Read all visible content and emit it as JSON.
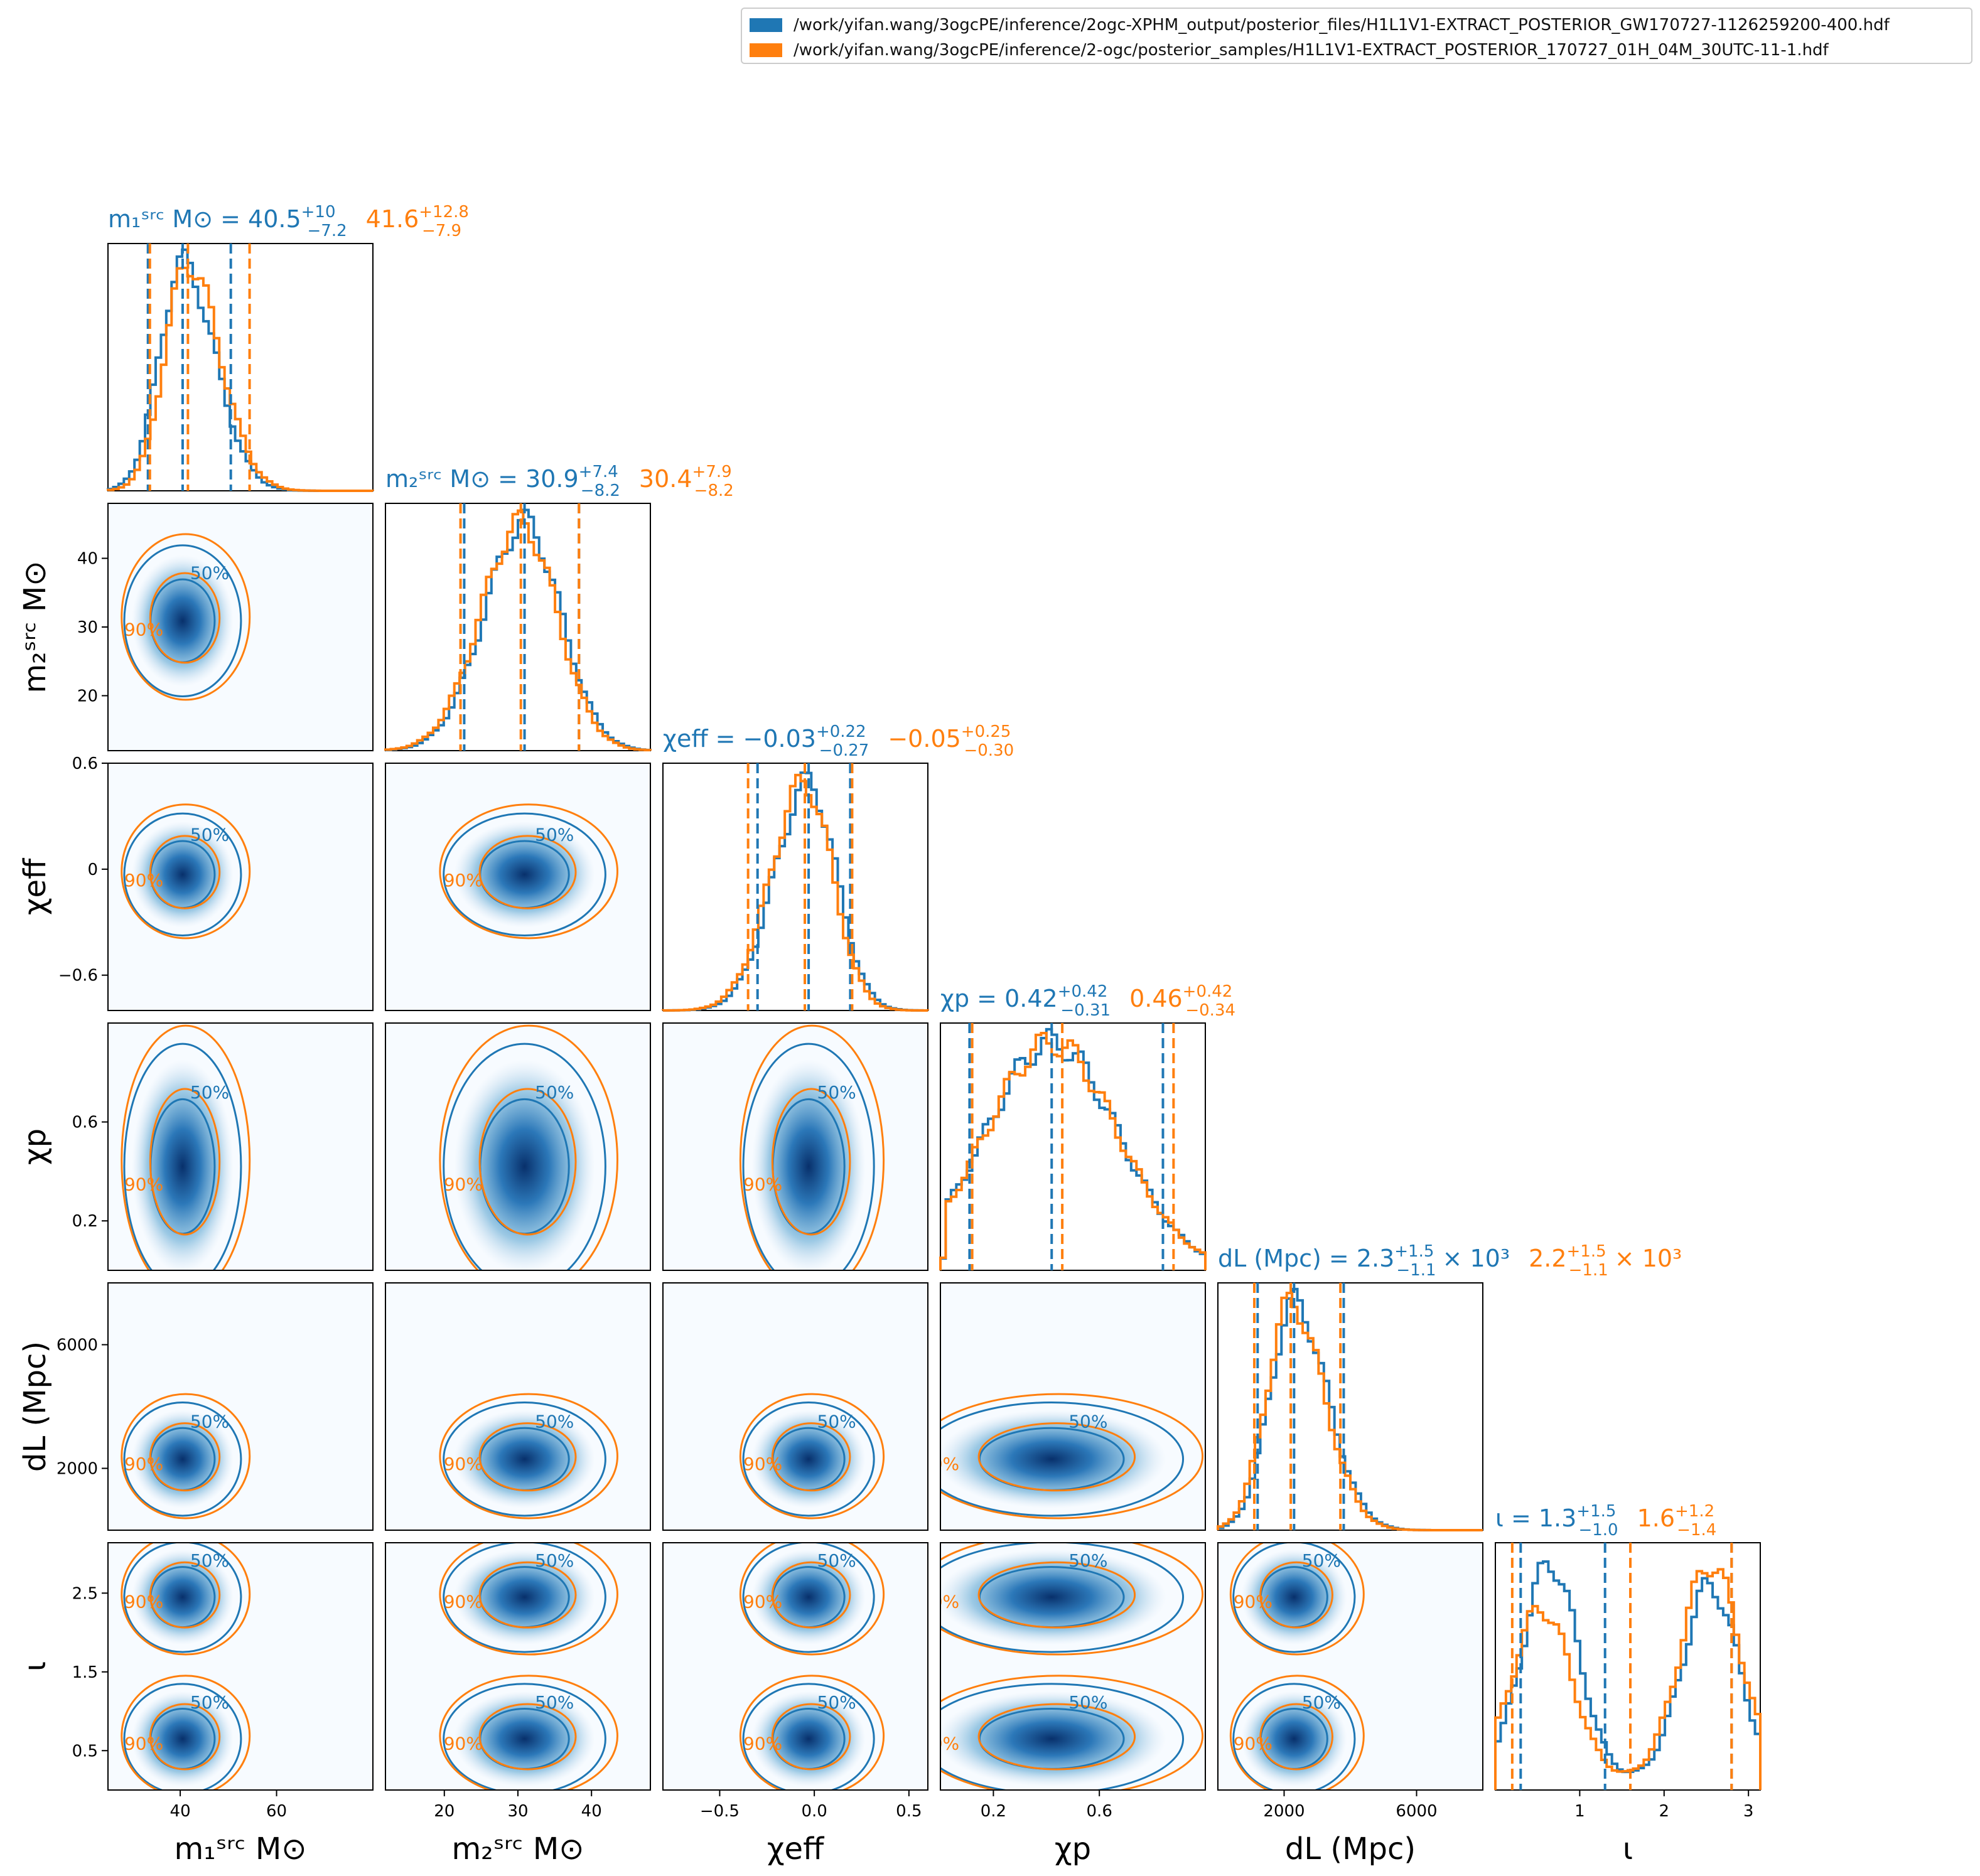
{
  "colors": {
    "blue": "#1f77b4",
    "orange": "#ff7f0e",
    "cmap": "Blues"
  },
  "legend": {
    "entries": [
      {
        "color": "#1f77b4",
        "label": "/work/yifan.wang/3ogcPE/inference/2ogc-XPHM_output/posterior_files/H1L1V1-EXTRACT_POSTERIOR_GW170727-1126259200-400.hdf"
      },
      {
        "color": "#ff7f0e",
        "label": "/work/yifan.wang/3ogcPE/inference/2-ogc/posterior_samples/H1L1V1-EXTRACT_POSTERIOR_170727_01H_04M_30UTC-11-1.hdf"
      }
    ]
  },
  "chart_data": {
    "type": "corner",
    "parameters": [
      {
        "key": "m1",
        "axis_label": "m₁ˢʳᶜ M⊙",
        "range": [
          25,
          80
        ],
        "ticks": [
          40,
          60
        ],
        "median_blue": 40.5,
        "lo_blue": 33.3,
        "hi_blue": 50.5,
        "median_orange": 41.6,
        "lo_orange": 33.7,
        "hi_orange": 54.4,
        "title_blue": {
          "name": "m₁ˢʳᶜ M⊙",
          "value": "40.5",
          "plus": "+10",
          "minus": "−7.2"
        },
        "title_orange": {
          "value": "41.6",
          "plus": "+12.8",
          "minus": "−7.9"
        }
      },
      {
        "key": "m2",
        "axis_label": "m₂ˢʳᶜ M⊙",
        "range": [
          12,
          48
        ],
        "ticks": [
          20,
          30,
          40
        ],
        "median_blue": 30.9,
        "lo_blue": 22.7,
        "hi_blue": 38.3,
        "median_orange": 30.4,
        "lo_orange": 22.2,
        "hi_orange": 38.3,
        "title_blue": {
          "name": "m₂ˢʳᶜ M⊙",
          "value": "30.9",
          "plus": "+7.4",
          "minus": "−8.2"
        },
        "title_orange": {
          "value": "30.4",
          "plus": "+7.9",
          "minus": "−8.2"
        }
      },
      {
        "key": "chi_eff",
        "axis_label": "χeff",
        "range": [
          -0.8,
          0.6
        ],
        "ticks": [
          -0.5,
          0.0,
          0.5
        ],
        "yticks": [
          -0.6,
          0.0,
          0.6
        ],
        "median_blue": -0.03,
        "lo_blue": -0.3,
        "hi_blue": 0.19,
        "median_orange": -0.05,
        "lo_orange": -0.35,
        "hi_orange": 0.2,
        "title_blue": {
          "name": "χeff",
          "value": "−0.03",
          "plus": "+0.22",
          "minus": "−0.27"
        },
        "title_orange": {
          "value": "−0.05",
          "plus": "+0.25",
          "minus": "−0.30"
        }
      },
      {
        "key": "chi_p",
        "axis_label": "χp",
        "range": [
          0.0,
          1.0
        ],
        "ticks": [
          0.2,
          0.6
        ],
        "yticks": [
          0.2,
          0.6
        ],
        "median_blue": 0.42,
        "lo_blue": 0.11,
        "hi_blue": 0.84,
        "median_orange": 0.46,
        "lo_orange": 0.12,
        "hi_orange": 0.88,
        "title_blue": {
          "name": "χp",
          "value": "0.42",
          "plus": "+0.42",
          "minus": "−0.31"
        },
        "title_orange": {
          "value": "0.46",
          "plus": "+0.42",
          "minus": "−0.34"
        }
      },
      {
        "key": "dL",
        "axis_label": "dL (Mpc)",
        "range": [
          0,
          8000
        ],
        "ticks": [
          2000,
          6000
        ],
        "yticks": [
          2000,
          6000
        ],
        "median_blue": 2300,
        "lo_blue": 1200,
        "hi_blue": 3800,
        "median_orange": 2200,
        "lo_orange": 1100,
        "hi_orange": 3700,
        "title_blue": {
          "name": "dL (Mpc)",
          "value": "2.3",
          "plus": "+1.5",
          "minus": "−1.1",
          "scale": "× 10³"
        },
        "title_orange": {
          "value": "2.2",
          "plus": "+1.5",
          "minus": "−1.1",
          "scale": "× 10³"
        }
      },
      {
        "key": "iota",
        "axis_label": "ι",
        "range": [
          0.0,
          3.14
        ],
        "ticks": [
          1,
          2,
          3
        ],
        "yticks": [
          0.5,
          1.5,
          2.5
        ],
        "median_blue": 1.3,
        "lo_blue": 0.3,
        "hi_blue": 2.8,
        "median_orange": 1.6,
        "lo_orange": 0.2,
        "hi_orange": 2.8,
        "title_blue": {
          "name": "ι",
          "value": "1.3",
          "plus": "+1.5",
          "minus": "−1.0"
        },
        "title_orange": {
          "value": "1.6",
          "plus": "+1.2",
          "minus": "−1.4"
        }
      }
    ],
    "contour_levels": [
      "50%",
      "90%"
    ],
    "series": [
      {
        "color": "#1f77b4"
      },
      {
        "color": "#ff7f0e"
      }
    ]
  }
}
